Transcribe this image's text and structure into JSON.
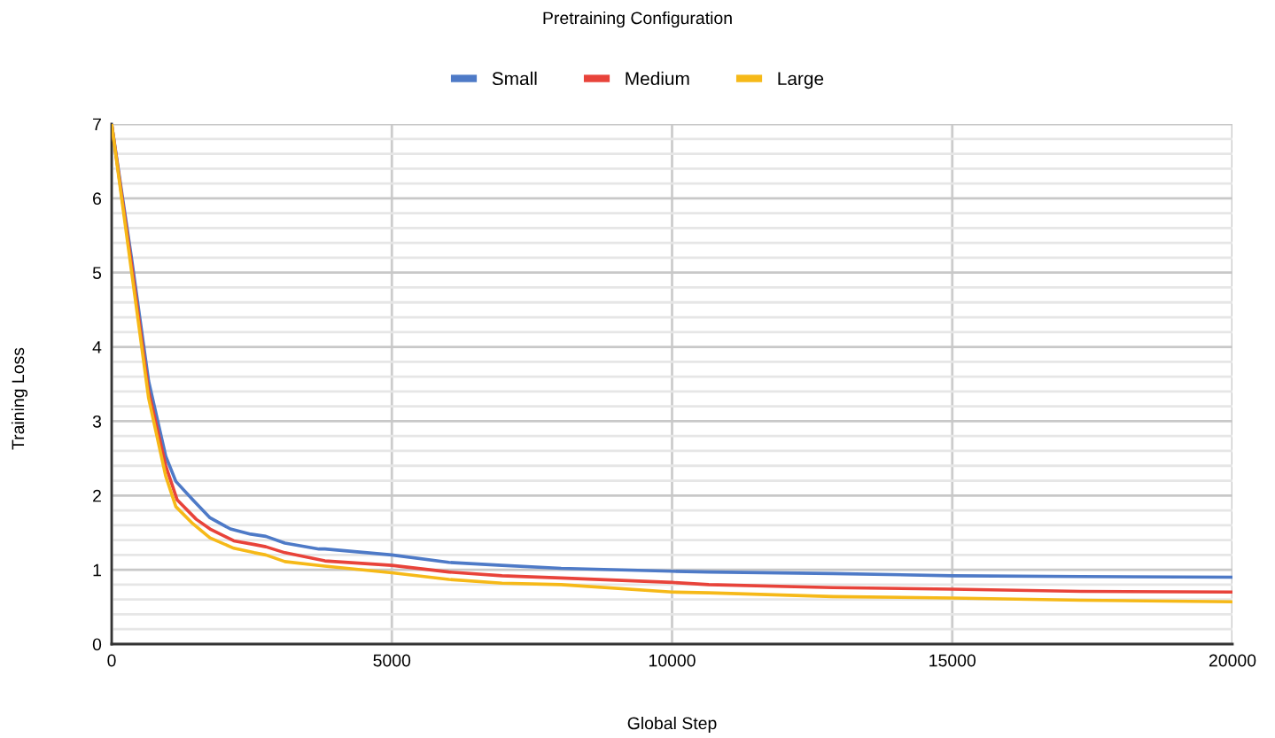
{
  "chart_data": {
    "type": "line",
    "title": "Pretraining Configuration",
    "xlabel": "Global Step",
    "ylabel": "Training Loss",
    "xlim": [
      0,
      20000
    ],
    "xticks": [
      0,
      5000,
      10000,
      15000,
      20000
    ],
    "ylim": [
      0,
      7
    ],
    "yticks": [
      0,
      {
        "value": 0.2,
        "label": null
      },
      {
        "value": 0.4,
        "label": null
      },
      {
        "value": 0.6,
        "label": null
      },
      {
        "value": 0.8,
        "label": null
      },
      1,
      {
        "value": 1.2,
        "label": null
      },
      {
        "value": 1.4,
        "label": null
      },
      {
        "value": 1.6,
        "label": null
      },
      {
        "value": 1.8,
        "label": null
      },
      2,
      {
        "value": 2.2,
        "label": null
      },
      {
        "value": 2.4,
        "label": null
      },
      {
        "value": 2.6,
        "label": null
      },
      {
        "value": 2.8,
        "label": null
      },
      3,
      {
        "value": 3.2,
        "label": null
      },
      {
        "value": 3.4,
        "label": null
      },
      {
        "value": 3.6,
        "label": null
      },
      {
        "value": 3.8,
        "label": null
      },
      4,
      {
        "value": 4.2,
        "label": null
      },
      {
        "value": 4.4,
        "label": null
      },
      {
        "value": 4.6,
        "label": null
      },
      {
        "value": 4.8,
        "label": null
      },
      5,
      {
        "value": 5.2,
        "label": null
      },
      {
        "value": 5.4,
        "label": null
      },
      {
        "value": 5.6,
        "label": null
      },
      {
        "value": 5.8,
        "label": null
      },
      6,
      {
        "value": 6.2,
        "label": null
      },
      {
        "value": 6.4,
        "label": null
      },
      {
        "value": 6.6,
        "label": null
      },
      {
        "value": 6.8,
        "label": null
      },
      7
    ],
    "grid": true,
    "legend": "top",
    "marker": "none",
    "line_style": "solid",
    "series": [
      {
        "name": "Small",
        "color": "#4e7ac7",
        "x": [
          0,
          356,
          660,
          965,
          1146,
          1450,
          1755,
          2118,
          2482,
          2751,
          3091,
          3700,
          3805,
          5000,
          6017,
          6966,
          8020,
          10000,
          10656,
          12870,
          15000,
          17296,
          20000
        ],
        "values": [
          7,
          5.19,
          3.54,
          2.53,
          2.19,
          1.94,
          1.7,
          1.55,
          1.48,
          1.45,
          1.36,
          1.28,
          1.28,
          1.2,
          1.1,
          1.06,
          1.02,
          0.98,
          0.97,
          0.95,
          0.92,
          0.91,
          0.9
        ]
      },
      {
        "name": "Medium",
        "color": "#e8433a",
        "x": [
          0,
          356,
          660,
          965,
          1170,
          1510,
          1755,
          2180,
          2546,
          2751,
          3091,
          3805,
          5000,
          6017,
          6966,
          8020,
          10000,
          10656,
          12870,
          15000,
          17296,
          20000
        ],
        "values": [
          7,
          5.1,
          3.4,
          2.4,
          1.94,
          1.68,
          1.55,
          1.39,
          1.34,
          1.31,
          1.23,
          1.12,
          1.06,
          0.97,
          0.92,
          0.89,
          0.83,
          0.8,
          0.76,
          0.74,
          0.71,
          0.7
        ]
      },
      {
        "name": "Large",
        "color": "#f6b918",
        "x": [
          0,
          356,
          660,
          965,
          1146,
          1450,
          1755,
          2180,
          2546,
          2751,
          3091,
          3805,
          5000,
          6017,
          6966,
          8020,
          10000,
          10656,
          12870,
          15000,
          17296,
          20000
        ],
        "values": [
          7,
          5.01,
          3.31,
          2.26,
          1.85,
          1.62,
          1.43,
          1.29,
          1.23,
          1.2,
          1.11,
          1.05,
          0.96,
          0.87,
          0.82,
          0.8,
          0.7,
          0.69,
          0.64,
          0.62,
          0.59,
          0.57
        ]
      }
    ]
  }
}
